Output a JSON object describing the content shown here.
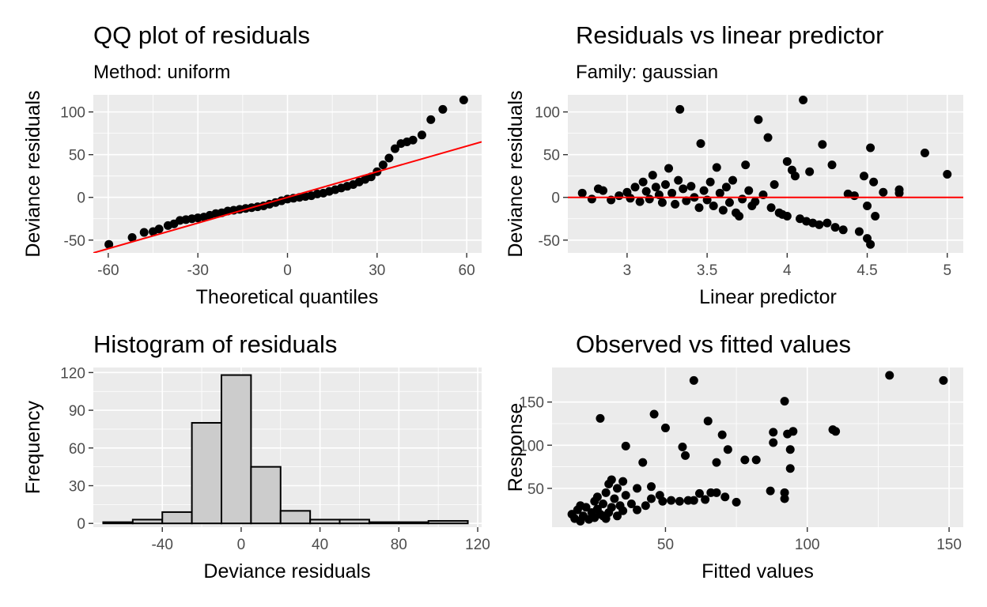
{
  "chart_data": [
    {
      "id": "qq",
      "type": "scatter",
      "title": "QQ plot of residuals",
      "subtitle": "Method: uniform",
      "xlabel": "Theoretical quantiles",
      "ylabel": "Deviance residuals",
      "xlim": [
        -65,
        65
      ],
      "ylim": [
        -65,
        120
      ],
      "xticks": [
        -60,
        -30,
        0,
        30,
        60
      ],
      "yticks": [
        -50,
        0,
        50,
        100
      ],
      "reference_line": {
        "slope": 1,
        "intercept": 0,
        "color": "#ff0000"
      },
      "points_color": "#000000",
      "points": [
        [
          -59.8,
          -55
        ],
        [
          -52,
          -47
        ],
        [
          -48,
          -41
        ],
        [
          -45,
          -40
        ],
        [
          -43,
          -37
        ],
        [
          -40,
          -33
        ],
        [
          -38,
          -31
        ],
        [
          -36,
          -27
        ],
        [
          -34,
          -26
        ],
        [
          -32,
          -25
        ],
        [
          -30,
          -24
        ],
        [
          -28,
          -23
        ],
        [
          -26,
          -21
        ],
        [
          -24,
          -19
        ],
        [
          -22,
          -18
        ],
        [
          -20,
          -16
        ],
        [
          -18,
          -15
        ],
        [
          -16,
          -14
        ],
        [
          -14,
          -13
        ],
        [
          -12,
          -12
        ],
        [
          -10,
          -11
        ],
        [
          -8,
          -10
        ],
        [
          -6,
          -8
        ],
        [
          -4,
          -6
        ],
        [
          -2,
          -4
        ],
        [
          0,
          -2
        ],
        [
          2,
          -1
        ],
        [
          4,
          0
        ],
        [
          6,
          1
        ],
        [
          8,
          2
        ],
        [
          10,
          4
        ],
        [
          12,
          5
        ],
        [
          14,
          7
        ],
        [
          16,
          9
        ],
        [
          18,
          11
        ],
        [
          20,
          13
        ],
        [
          22,
          15
        ],
        [
          24,
          18
        ],
        [
          26,
          21
        ],
        [
          28,
          24
        ],
        [
          30,
          30
        ],
        [
          32,
          38
        ],
        [
          34,
          46
        ],
        [
          36,
          57
        ],
        [
          38,
          63
        ],
        [
          40,
          65
        ],
        [
          42,
          67
        ],
        [
          45,
          73
        ],
        [
          48,
          91
        ],
        [
          52,
          103
        ],
        [
          59,
          114
        ]
      ]
    },
    {
      "id": "rvl",
      "type": "scatter",
      "title": "Residuals vs linear predictor",
      "subtitle": "Family: gaussian",
      "xlabel": "Linear predictor",
      "ylabel": "Deviance residuals",
      "xlim": [
        2.63,
        5.1
      ],
      "ylim": [
        -65,
        120
      ],
      "xticks": [
        3.0,
        3.5,
        4.0,
        4.5,
        5.0
      ],
      "yticks": [
        -50,
        0,
        50,
        100
      ],
      "reference_line": {
        "slope": 0,
        "intercept": 0,
        "color": "#ff0000"
      },
      "points_color": "#000000",
      "points": [
        [
          2.72,
          5
        ],
        [
          2.78,
          -2
        ],
        [
          2.82,
          10
        ],
        [
          2.85,
          8
        ],
        [
          2.9,
          -3
        ],
        [
          2.95,
          2
        ],
        [
          3.0,
          6
        ],
        [
          3.02,
          -1
        ],
        [
          3.05,
          12
        ],
        [
          3.08,
          -5
        ],
        [
          3.1,
          18
        ],
        [
          3.12,
          7
        ],
        [
          3.14,
          -2
        ],
        [
          3.16,
          26
        ],
        [
          3.18,
          12
        ],
        [
          3.2,
          3
        ],
        [
          3.22,
          -6
        ],
        [
          3.24,
          15
        ],
        [
          3.26,
          34
        ],
        [
          3.28,
          5
        ],
        [
          3.3,
          -8
        ],
        [
          3.32,
          20
        ],
        [
          3.33,
          103
        ],
        [
          3.35,
          10
        ],
        [
          3.37,
          -4
        ],
        [
          3.4,
          13
        ],
        [
          3.42,
          0
        ],
        [
          3.45,
          -12
        ],
        [
          3.46,
          63
        ],
        [
          3.48,
          8
        ],
        [
          3.5,
          -3
        ],
        [
          3.52,
          18
        ],
        [
          3.54,
          -10
        ],
        [
          3.56,
          35
        ],
        [
          3.58,
          5
        ],
        [
          3.6,
          -15
        ],
        [
          3.62,
          12
        ],
        [
          3.64,
          -6
        ],
        [
          3.66,
          20
        ],
        [
          3.68,
          -18
        ],
        [
          3.7,
          -22
        ],
        [
          3.72,
          -2
        ],
        [
          3.74,
          38
        ],
        [
          3.76,
          8
        ],
        [
          3.78,
          -10
        ],
        [
          3.8,
          -5
        ],
        [
          3.82,
          91
        ],
        [
          3.85,
          3
        ],
        [
          3.88,
          70
        ],
        [
          3.9,
          -12
        ],
        [
          3.92,
          15
        ],
        [
          3.95,
          -18
        ],
        [
          3.97,
          -20
        ],
        [
          4.0,
          -22
        ],
        [
          4.0,
          42
        ],
        [
          4.03,
          32
        ],
        [
          4.05,
          25
        ],
        [
          4.08,
          -25
        ],
        [
          4.1,
          114
        ],
        [
          4.12,
          -28
        ],
        [
          4.14,
          30
        ],
        [
          4.16,
          -30
        ],
        [
          4.2,
          -32
        ],
        [
          4.22,
          62
        ],
        [
          4.25,
          -30
        ],
        [
          4.28,
          38
        ],
        [
          4.3,
          -35
        ],
        [
          4.35,
          -38
        ],
        [
          4.38,
          4
        ],
        [
          4.42,
          2
        ],
        [
          4.45,
          -40
        ],
        [
          4.48,
          25
        ],
        [
          4.5,
          -48
        ],
        [
          4.5,
          -10
        ],
        [
          4.52,
          58
        ],
        [
          4.52,
          -55
        ],
        [
          4.54,
          18
        ],
        [
          4.55,
          -22
        ],
        [
          4.6,
          6
        ],
        [
          4.7,
          9
        ],
        [
          4.7,
          5
        ],
        [
          4.86,
          52
        ],
        [
          5.0,
          27
        ]
      ]
    },
    {
      "id": "hist",
      "type": "bar",
      "title": "Histogram of residuals",
      "xlabel": "Deviance residuals",
      "ylabel": "Frequency",
      "xlim": [
        -75,
        122
      ],
      "ylim": [
        -3,
        124
      ],
      "xticks": [
        -40,
        0,
        40,
        80,
        120
      ],
      "yticks": [
        0,
        30,
        60,
        90,
        120
      ],
      "bar_fill": "#cccccc",
      "bar_stroke": "#000000",
      "bins": [
        [
          -70,
          -55,
          1
        ],
        [
          -55,
          -40,
          3
        ],
        [
          -40,
          -25,
          9
        ],
        [
          -25,
          -10,
          80
        ],
        [
          -10,
          5,
          118
        ],
        [
          5,
          20,
          45
        ],
        [
          20,
          35,
          10
        ],
        [
          35,
          50,
          3
        ],
        [
          50,
          65,
          3
        ],
        [
          65,
          80,
          1
        ],
        [
          80,
          95,
          1
        ],
        [
          95,
          115,
          2
        ]
      ]
    },
    {
      "id": "ovf",
      "type": "scatter",
      "title": "Observed vs fitted values",
      "xlabel": "Fitted values",
      "ylabel": "Response",
      "xlim": [
        10,
        155
      ],
      "ylim": [
        5,
        190
      ],
      "xticks": [
        50,
        100,
        150
      ],
      "yticks": [
        50,
        100,
        150
      ],
      "points_color": "#000000",
      "points": [
        [
          17,
          20
        ],
        [
          18,
          15
        ],
        [
          19,
          25
        ],
        [
          20,
          30
        ],
        [
          20,
          12
        ],
        [
          21,
          18
        ],
        [
          22,
          28
        ],
        [
          23,
          14
        ],
        [
          24,
          22
        ],
        [
          25,
          35
        ],
        [
          25,
          16
        ],
        [
          26,
          40
        ],
        [
          26,
          26
        ],
        [
          27,
          131
        ],
        [
          27,
          20
        ],
        [
          28,
          18
        ],
        [
          28,
          32
        ],
        [
          29,
          45
        ],
        [
          29,
          15
        ],
        [
          30,
          22
        ],
        [
          30,
          55
        ],
        [
          31,
          28
        ],
        [
          31,
          60
        ],
        [
          32,
          38
        ],
        [
          33,
          18
        ],
        [
          33,
          50
        ],
        [
          34,
          30
        ],
        [
          35,
          58
        ],
        [
          35,
          24
        ],
        [
          36,
          99
        ],
        [
          36,
          42
        ],
        [
          38,
          32
        ],
        [
          40,
          25
        ],
        [
          40,
          50
        ],
        [
          42,
          80
        ],
        [
          43,
          30
        ],
        [
          45,
          52
        ],
        [
          45,
          38
        ],
        [
          46,
          136
        ],
        [
          48,
          42
        ],
        [
          49,
          35
        ],
        [
          50,
          120
        ],
        [
          52,
          36
        ],
        [
          55,
          35
        ],
        [
          56,
          98
        ],
        [
          57,
          88
        ],
        [
          58,
          36
        ],
        [
          60,
          175
        ],
        [
          60,
          36
        ],
        [
          62,
          44
        ],
        [
          64,
          37
        ],
        [
          65,
          128
        ],
        [
          66,
          45
        ],
        [
          68,
          80
        ],
        [
          68,
          45
        ],
        [
          70,
          112
        ],
        [
          71,
          40
        ],
        [
          72,
          95
        ],
        [
          75,
          34
        ],
        [
          78,
          83
        ],
        [
          82,
          83
        ],
        [
          87,
          47
        ],
        [
          88,
          103
        ],
        [
          88,
          115
        ],
        [
          92,
          151
        ],
        [
          92,
          45
        ],
        [
          92,
          38
        ],
        [
          93,
          113
        ],
        [
          94,
          95
        ],
        [
          94,
          73
        ],
        [
          95,
          116
        ],
        [
          109,
          118
        ],
        [
          110,
          116
        ],
        [
          129,
          181
        ],
        [
          148,
          175
        ]
      ]
    }
  ]
}
